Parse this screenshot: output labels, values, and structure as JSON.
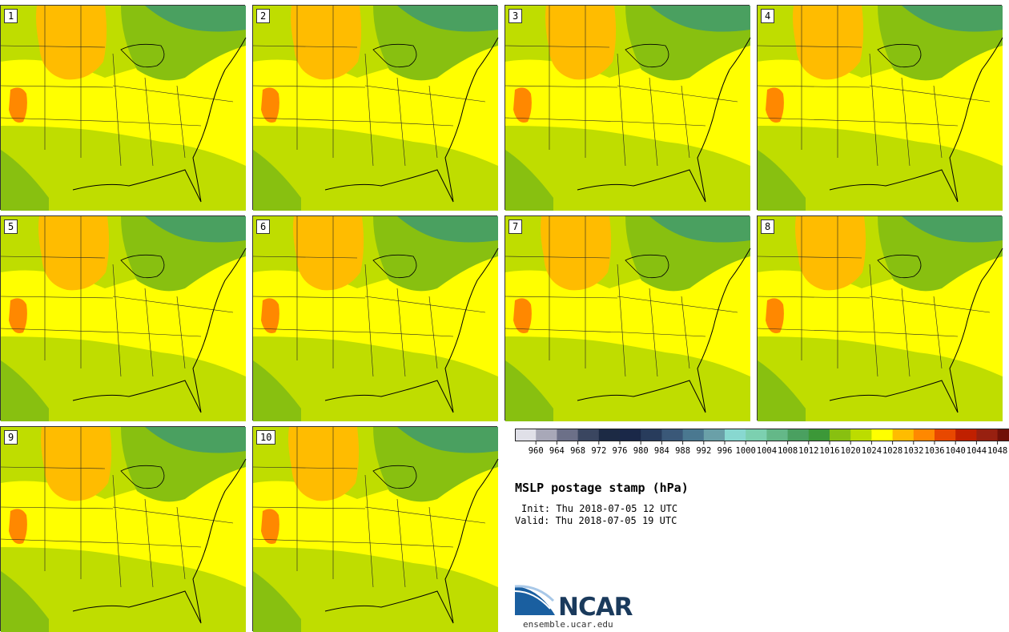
{
  "title": "MSLP postage stamp (hPa)",
  "init_label": "Init: Thu 2018-07-05 12 UTC",
  "valid_label": "Valid: Thu 2018-07-05 19 UTC",
  "logo": {
    "name": "NCAR",
    "url": "ensemble.ucar.edu"
  },
  "panels": [
    {
      "label": "1"
    },
    {
      "label": "2"
    },
    {
      "label": "3"
    },
    {
      "label": "4"
    },
    {
      "label": "5"
    },
    {
      "label": "6"
    },
    {
      "label": "7"
    },
    {
      "label": "8"
    },
    {
      "label": "9"
    },
    {
      "label": "10"
    }
  ],
  "colorbar": {
    "ticks": [
      "960",
      "964",
      "968",
      "972",
      "976",
      "980",
      "984",
      "988",
      "992",
      "996",
      "1000",
      "1004",
      "1008",
      "1012",
      "1016",
      "1020",
      "1024",
      "1028",
      "1032",
      "1036",
      "1040",
      "1044",
      "1048"
    ],
    "colors": [
      "#e0e0e8",
      "#a8a8b8",
      "#6c7088",
      "#3a4660",
      "#1c2a44",
      "#1a2848",
      "#283c5c",
      "#3a5878",
      "#4a7890",
      "#6aa0a8",
      "#88d8d0",
      "#7cd0b0",
      "#64b888",
      "#4aa060",
      "#3c9838",
      "#88c010",
      "#bcdc00",
      "#ffff00",
      "#ffbc00",
      "#ff8800",
      "#e84800",
      "#c02000",
      "#982010",
      "#701008"
    ]
  }
}
